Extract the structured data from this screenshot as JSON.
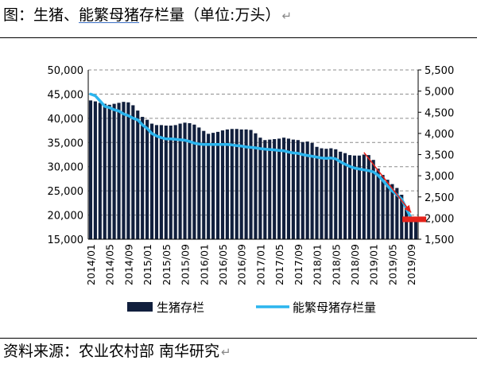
{
  "header": {
    "prefix": "图：",
    "title_plain": "生猪、",
    "title_underlined": "能繁母猪",
    "title_rest": "存栏量（单位:万头）"
  },
  "footer": {
    "source": "资料来源：农业农村部  南华研究"
  },
  "return_glyph": "↵",
  "chart_data": {
    "type": "bar",
    "title": "",
    "x": [
      "2014/01",
      "2014/02",
      "2014/03",
      "2014/04",
      "2014/05",
      "2014/06",
      "2014/07",
      "2014/08",
      "2014/09",
      "2014/10",
      "2014/11",
      "2014/12",
      "2015/01",
      "2015/02",
      "2015/03",
      "2015/04",
      "2015/05",
      "2015/06",
      "2015/07",
      "2015/08",
      "2015/09",
      "2015/10",
      "2015/11",
      "2015/12",
      "2016/01",
      "2016/02",
      "2016/03",
      "2016/04",
      "2016/05",
      "2016/06",
      "2016/07",
      "2016/08",
      "2016/09",
      "2016/10",
      "2016/11",
      "2016/12",
      "2017/01",
      "2017/02",
      "2017/03",
      "2017/04",
      "2017/05",
      "2017/06",
      "2017/07",
      "2017/08",
      "2017/09",
      "2017/10",
      "2017/11",
      "2017/12",
      "2018/01",
      "2018/02",
      "2018/03",
      "2018/04",
      "2018/05",
      "2018/06",
      "2018/07",
      "2018/08",
      "2018/09",
      "2018/10",
      "2018/11",
      "2018/12",
      "2019/01",
      "2019/02",
      "2019/03",
      "2019/04",
      "2019/05",
      "2019/06",
      "2019/07",
      "2019/08",
      "2019/09",
      "2019/10"
    ],
    "x_tick_labels": [
      "2014/01",
      "2014/05",
      "2014/09",
      "2015/01",
      "2015/05",
      "2015/09",
      "2016/01",
      "2016/05",
      "2016/09",
      "2017/01",
      "2017/05",
      "2017/09",
      "2018/01",
      "2018/05",
      "2018/09",
      "2019/01",
      "2019/05",
      "2019/09"
    ],
    "series": [
      {
        "name": "生猪存栏",
        "type": "bar",
        "axis": "left",
        "color": "#111f3d",
        "values": [
          43700,
          43500,
          43200,
          43000,
          42800,
          43000,
          43200,
          43400,
          43300,
          42700,
          41600,
          40300,
          39700,
          38900,
          38600,
          38600,
          38500,
          38500,
          38600,
          38900,
          39100,
          39000,
          38700,
          38100,
          37400,
          36800,
          37000,
          37200,
          37500,
          37700,
          37800,
          37800,
          37700,
          37700,
          37600,
          36900,
          36000,
          35500,
          35600,
          35700,
          35800,
          36000,
          35800,
          35600,
          35500,
          35100,
          35200,
          34900,
          34100,
          33800,
          33700,
          33800,
          33600,
          33100,
          32800,
          32400,
          32300,
          32300,
          32500,
          32400,
          31400,
          29600,
          28300,
          27300,
          26400,
          25600,
          24200,
          21600,
          19300,
          19100
        ]
      },
      {
        "name": "能繁母猪存栏量",
        "type": "line",
        "axis": "right",
        "color": "#2bb5ee",
        "values": [
          4930,
          4890,
          4770,
          4640,
          4610,
          4560,
          4530,
          4460,
          4420,
          4360,
          4320,
          4200,
          4120,
          4000,
          3940,
          3900,
          3870,
          3870,
          3860,
          3850,
          3840,
          3810,
          3770,
          3750,
          3740,
          3740,
          3740,
          3740,
          3740,
          3740,
          3730,
          3710,
          3700,
          3680,
          3670,
          3660,
          3640,
          3630,
          3620,
          3610,
          3600,
          3590,
          3560,
          3540,
          3530,
          3500,
          3480,
          3460,
          3440,
          3420,
          3410,
          3420,
          3400,
          3330,
          3270,
          3220,
          3180,
          3160,
          3140,
          3120,
          3090,
          3010,
          2890,
          2760,
          2640,
          2550,
          2450,
          2220,
          2000,
          1990
        ]
      }
    ],
    "y_left": {
      "min": 15000,
      "max": 50000,
      "step": 5000,
      "tick_labels": [
        "15,000",
        "20,000",
        "25,000",
        "30,000",
        "35,000",
        "40,000",
        "45,000",
        "50,000"
      ]
    },
    "y_right": {
      "min": 1500,
      "max": 5500,
      "step": 500,
      "tick_labels": [
        "1,500",
        "2,000",
        "2,500",
        "3,000",
        "3,500",
        "4,000",
        "4,500",
        "5,000",
        "5,500"
      ]
    },
    "grid": "horizontal dashed",
    "legend_position": "bottom",
    "annotations": [
      {
        "kind": "arrow",
        "color": "#e5231b",
        "from_x": "2018/11",
        "from_y_right": 3550,
        "to_x": "2019/09",
        "to_y_right": 2130
      },
      {
        "kind": "marker",
        "color": "#e5231b",
        "at_x": "2019/09",
        "y_right": 1980
      }
    ]
  }
}
